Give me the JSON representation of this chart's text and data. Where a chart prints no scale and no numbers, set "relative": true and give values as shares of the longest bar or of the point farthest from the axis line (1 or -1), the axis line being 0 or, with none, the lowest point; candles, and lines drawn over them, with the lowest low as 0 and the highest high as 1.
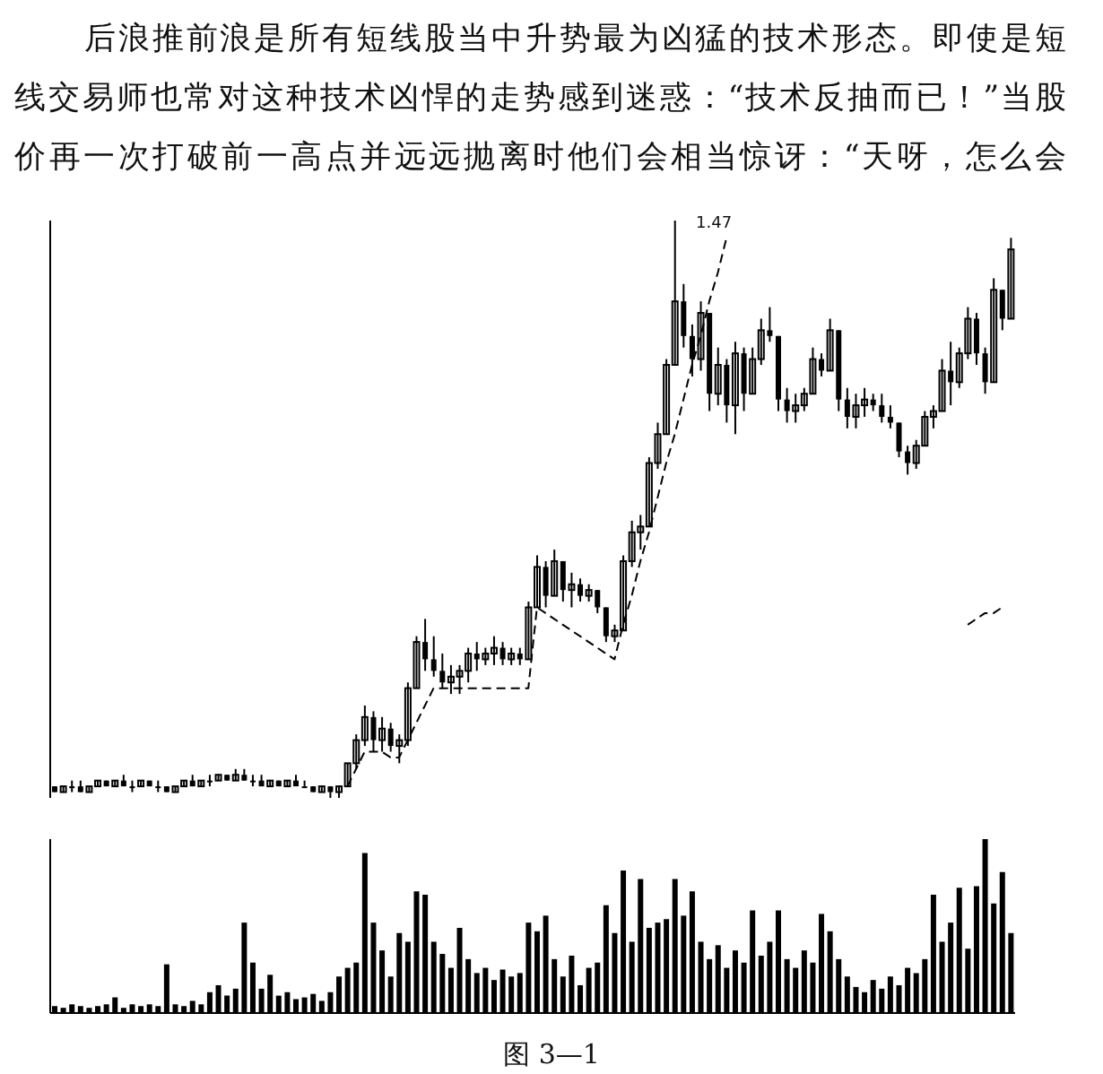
{
  "chart_data": [
    {
      "type": "candlestick",
      "relative": true,
      "color": "#000000",
      "annotations": [
        "后浪推前浪是所有短线股当中升势最为凶猛的技术形态。即使是短",
        "线交易师也常对这种技术凶悍的走势感到迷惑：“技术反抽而已！”当股",
        "价再一次打破前一高点并远远抛离时他们会相当惊讶：“天呀，怎么会",
        "1.47"
      ],
      "categories": [
        null,
        null,
        null,
        null,
        null,
        null,
        null,
        null,
        null,
        null,
        null,
        null,
        null,
        null,
        null,
        null,
        null,
        null,
        null,
        null,
        null,
        null,
        null,
        null,
        null,
        null,
        null,
        null,
        null,
        null,
        null,
        null,
        null,
        null,
        null,
        null,
        null,
        null,
        null,
        null,
        null,
        null,
        null,
        null,
        null,
        null,
        null,
        null,
        null,
        null,
        null,
        null,
        null,
        null,
        null,
        null,
        null,
        null,
        null,
        null,
        null,
        null,
        null,
        null,
        null,
        null,
        null,
        null,
        null,
        null,
        null,
        null,
        null,
        null,
        null,
        null,
        null,
        null,
        null,
        null,
        null,
        null,
        null,
        null,
        null,
        null,
        null,
        null,
        null,
        null,
        null,
        null,
        null,
        null,
        null,
        null,
        null,
        null,
        null,
        null,
        null,
        null,
        null,
        null,
        null,
        null,
        null,
        null,
        null,
        null,
        null,
        null
      ],
      "ohlc": [
        [
          0.02,
          0.02,
          0.01,
          0.01
        ],
        [
          0.01,
          0.02,
          0.01,
          0.02
        ],
        [
          0.02,
          0.03,
          0.01,
          0.02
        ],
        [
          0.02,
          0.03,
          0.01,
          0.01
        ],
        [
          0.01,
          0.02,
          0.01,
          0.02
        ],
        [
          0.02,
          0.03,
          0.02,
          0.03
        ],
        [
          0.03,
          0.03,
          0.02,
          0.02
        ],
        [
          0.02,
          0.03,
          0.02,
          0.03
        ],
        [
          0.03,
          0.04,
          0.02,
          0.02
        ],
        [
          0.02,
          0.03,
          0.01,
          0.02
        ],
        [
          0.02,
          0.03,
          0.02,
          0.03
        ],
        [
          0.03,
          0.03,
          0.02,
          0.02
        ],
        [
          0.02,
          0.03,
          0.01,
          0.02
        ],
        [
          0.02,
          0.02,
          0.01,
          0.01
        ],
        [
          0.01,
          0.02,
          0.01,
          0.02
        ],
        [
          0.02,
          0.03,
          0.02,
          0.03
        ],
        [
          0.03,
          0.04,
          0.02,
          0.02
        ],
        [
          0.02,
          0.03,
          0.02,
          0.03
        ],
        [
          0.03,
          0.04,
          0.02,
          0.03
        ],
        [
          0.03,
          0.04,
          0.03,
          0.04
        ],
        [
          0.04,
          0.04,
          0.03,
          0.03
        ],
        [
          0.03,
          0.05,
          0.03,
          0.04
        ],
        [
          0.04,
          0.05,
          0.03,
          0.03
        ],
        [
          0.03,
          0.04,
          0.02,
          0.03
        ],
        [
          0.03,
          0.04,
          0.02,
          0.02
        ],
        [
          0.02,
          0.03,
          0.02,
          0.03
        ],
        [
          0.03,
          0.03,
          0.02,
          0.02
        ],
        [
          0.02,
          0.03,
          0.02,
          0.03
        ],
        [
          0.03,
          0.04,
          0.02,
          0.02
        ],
        [
          0.02,
          0.03,
          0.02,
          0.02
        ],
        [
          0.02,
          0.02,
          0.01,
          0.01
        ],
        [
          0.01,
          0.02,
          0.01,
          0.02
        ],
        [
          0.02,
          0.02,
          0,
          0.01
        ],
        [
          0.01,
          0.02,
          0,
          0.02
        ],
        [
          0.02,
          0.06,
          0.02,
          0.06
        ],
        [
          0.06,
          0.11,
          0.05,
          0.1
        ],
        [
          0.1,
          0.16,
          0.09,
          0.14
        ],
        [
          0.14,
          0.15,
          0.08,
          0.1
        ],
        [
          0.1,
          0.14,
          0.08,
          0.12
        ],
        [
          0.12,
          0.13,
          0.08,
          0.09
        ],
        [
          0.09,
          0.11,
          0.06,
          0.1
        ],
        [
          0.1,
          0.2,
          0.09,
          0.19
        ],
        [
          0.19,
          0.28,
          0.19,
          0.27
        ],
        [
          0.27,
          0.31,
          0.22,
          0.24
        ],
        [
          0.24,
          0.28,
          0.21,
          0.22
        ],
        [
          0.22,
          0.25,
          0.19,
          0.2
        ],
        [
          0.2,
          0.23,
          0.18,
          0.21
        ],
        [
          0.21,
          0.23,
          0.18,
          0.22
        ],
        [
          0.22,
          0.26,
          0.2,
          0.25
        ],
        [
          0.25,
          0.27,
          0.22,
          0.24
        ],
        [
          0.24,
          0.26,
          0.23,
          0.25
        ],
        [
          0.25,
          0.28,
          0.23,
          0.26
        ],
        [
          0.26,
          0.27,
          0.23,
          0.24
        ],
        [
          0.24,
          0.26,
          0.23,
          0.25
        ],
        [
          0.25,
          0.26,
          0.23,
          0.24
        ],
        [
          0.24,
          0.34,
          0.24,
          0.33
        ],
        [
          0.33,
          0.42,
          0.33,
          0.4
        ],
        [
          0.4,
          0.41,
          0.33,
          0.35
        ],
        [
          0.35,
          0.43,
          0.35,
          0.41
        ],
        [
          0.41,
          0.41,
          0.34,
          0.36
        ],
        [
          0.36,
          0.39,
          0.33,
          0.37
        ],
        [
          0.37,
          0.38,
          0.34,
          0.35
        ],
        [
          0.35,
          0.37,
          0.34,
          0.36
        ],
        [
          0.36,
          0.36,
          0.32,
          0.33
        ],
        [
          0.33,
          0.33,
          0.27,
          0.28
        ],
        [
          0.28,
          0.3,
          0.27,
          0.29
        ],
        [
          0.29,
          0.42,
          0.29,
          0.41
        ],
        [
          0.41,
          0.48,
          0.4,
          0.46
        ],
        [
          0.46,
          0.49,
          0.43,
          0.47
        ],
        [
          0.47,
          0.59,
          0.47,
          0.58
        ],
        [
          0.58,
          0.65,
          0.57,
          0.63
        ],
        [
          0.63,
          0.76,
          0.63,
          0.75
        ],
        [
          0.75,
          1,
          0.75,
          0.86
        ],
        [
          0.86,
          0.89,
          0.78,
          0.8
        ],
        [
          0.8,
          0.82,
          0.73,
          0.76
        ],
        [
          0.76,
          0.86,
          0.74,
          0.84
        ],
        [
          0.84,
          0.84,
          0.67,
          0.7
        ],
        [
          0.7,
          0.78,
          0.68,
          0.75
        ],
        [
          0.75,
          0.76,
          0.65,
          0.68
        ],
        [
          0.68,
          0.79,
          0.63,
          0.77
        ],
        [
          0.77,
          0.78,
          0.67,
          0.7
        ],
        [
          0.7,
          0.78,
          0.7,
          0.76
        ],
        [
          0.76,
          0.83,
          0.75,
          0.81
        ],
        [
          0.81,
          0.85,
          0.79,
          0.8
        ],
        [
          0.8,
          0.8,
          0.67,
          0.69
        ],
        [
          0.69,
          0.71,
          0.65,
          0.67
        ],
        [
          0.67,
          0.7,
          0.65,
          0.68
        ],
        [
          0.68,
          0.71,
          0.67,
          0.7
        ],
        [
          0.7,
          0.78,
          0.7,
          0.76
        ],
        [
          0.76,
          0.77,
          0.73,
          0.74
        ],
        [
          0.74,
          0.83,
          0.74,
          0.81
        ],
        [
          0.81,
          0.81,
          0.67,
          0.69
        ],
        [
          0.69,
          0.71,
          0.64,
          0.66
        ],
        [
          0.66,
          0.7,
          0.64,
          0.68
        ],
        [
          0.68,
          0.71,
          0.66,
          0.69
        ],
        [
          0.69,
          0.7,
          0.67,
          0.68
        ],
        [
          0.68,
          0.7,
          0.65,
          0.66
        ],
        [
          0.66,
          0.68,
          0.64,
          0.65
        ],
        [
          0.65,
          0.65,
          0.59,
          0.6
        ],
        [
          0.6,
          0.61,
          0.56,
          0.58
        ],
        [
          0.58,
          0.62,
          0.57,
          0.61
        ],
        [
          0.61,
          0.67,
          0.61,
          0.66
        ],
        [
          0.66,
          0.68,
          0.64,
          0.67
        ],
        [
          0.67,
          0.76,
          0.67,
          0.74
        ],
        [
          0.74,
          0.79,
          0.68,
          0.72
        ],
        [
          0.72,
          0.78,
          0.71,
          0.77
        ],
        [
          0.77,
          0.85,
          0.76,
          0.83
        ],
        [
          0.83,
          0.84,
          0.75,
          0.77
        ],
        [
          0.77,
          0.78,
          0.7,
          0.72
        ],
        [
          0.72,
          0.9,
          0.72,
          0.88
        ],
        [
          0.88,
          0.88,
          0.81,
          0.83
        ],
        [
          0.83,
          0.97,
          0.83,
          0.95
        ]
      ],
      "series": [
        {
          "type": "line",
          "color": "#000000",
          "line_style": "dashed",
          "values": [
            null,
            null,
            null,
            null,
            null,
            null,
            null,
            null,
            null,
            null,
            null,
            null,
            null,
            null,
            null,
            null,
            null,
            null,
            null,
            null,
            null,
            null,
            null,
            null,
            null,
            null,
            null,
            null,
            null,
            null,
            null,
            null,
            null,
            null,
            0.02,
            0.05,
            0.08,
            0.08,
            0.08,
            0.07,
            0.07,
            0.1,
            0.13,
            0.16,
            0.19,
            0.19,
            0.19,
            0.19,
            0.19,
            0.19,
            0.19,
            0.19,
            0.19,
            0.19,
            0.19,
            0.19,
            0.33,
            0.32,
            0.31,
            0.3,
            0.29,
            0.28,
            0.27,
            0.26,
            0.25,
            0.24,
            0.3,
            0.35,
            0.41,
            0.46,
            0.52,
            0.58,
            0.63,
            0.69,
            0.75,
            0.8,
            0.86,
            0.91,
            0.97,
            null,
            null,
            null,
            null,
            null,
            null,
            null,
            null,
            null,
            null,
            null,
            null,
            null,
            null,
            null,
            null,
            null,
            null,
            null,
            null,
            null,
            null,
            null,
            null,
            null,
            null,
            null,
            null,
            null,
            null,
            null,
            null,
            null
          ]
        },
        {
          "type": "line",
          "color": "#000000",
          "line_style": "dashed",
          "values": [
            null,
            null,
            null,
            null,
            null,
            null,
            null,
            null,
            null,
            null,
            null,
            null,
            null,
            null,
            null,
            null,
            null,
            null,
            null,
            null,
            null,
            null,
            null,
            null,
            null,
            null,
            null,
            null,
            null,
            null,
            null,
            null,
            null,
            null,
            null,
            null,
            null,
            null,
            null,
            null,
            null,
            null,
            null,
            null,
            null,
            null,
            null,
            null,
            null,
            null,
            null,
            null,
            null,
            null,
            null,
            null,
            null,
            null,
            null,
            null,
            null,
            null,
            null,
            null,
            null,
            null,
            null,
            null,
            null,
            null,
            null,
            null,
            null,
            null,
            null,
            null,
            null,
            null,
            null,
            null,
            null,
            null,
            null,
            null,
            null,
            null,
            null,
            null,
            null,
            null,
            null,
            null,
            null,
            null,
            null,
            null,
            null,
            null,
            null,
            null,
            null,
            null,
            null,
            null,
            null,
            null,
            0.3,
            0.31,
            0.32,
            0.32,
            0.33,
            null
          ]
        }
      ]
    },
    {
      "type": "bar",
      "relative": true,
      "color": "#000000",
      "annotations": [
        "图 3—1"
      ],
      "categories": [
        null,
        null,
        null,
        null,
        null,
        null,
        null,
        null,
        null,
        null,
        null,
        null,
        null,
        null,
        null,
        null,
        null,
        null,
        null,
        null,
        null,
        null,
        null,
        null,
        null,
        null,
        null,
        null,
        null,
        null,
        null,
        null,
        null,
        null,
        null,
        null,
        null,
        null,
        null,
        null,
        null,
        null,
        null,
        null,
        null,
        null,
        null,
        null,
        null,
        null,
        null,
        null,
        null,
        null,
        null,
        null,
        null,
        null,
        null,
        null,
        null,
        null,
        null,
        null,
        null,
        null,
        null,
        null,
        null,
        null,
        null,
        null,
        null,
        null,
        null,
        null,
        null,
        null,
        null,
        null,
        null,
        null,
        null,
        null,
        null,
        null,
        null,
        null,
        null,
        null,
        null,
        null,
        null,
        null,
        null,
        null,
        null,
        null,
        null,
        null,
        null,
        null,
        null,
        null,
        null,
        null,
        null,
        null,
        null,
        null,
        null,
        null
      ],
      "values": [
        0.04,
        0.03,
        0.05,
        0.04,
        0.03,
        0.04,
        0.05,
        0.09,
        0.03,
        0.05,
        0.04,
        0.05,
        0.04,
        0.28,
        0.05,
        0.04,
        0.07,
        0.05,
        0.12,
        0.16,
        0.1,
        0.14,
        0.52,
        0.29,
        0.14,
        0.22,
        0.1,
        0.12,
        0.08,
        0.09,
        0.11,
        0.07,
        0.12,
        0.21,
        0.26,
        0.29,
        0.92,
        0.52,
        0.36,
        0.21,
        0.46,
        0.41,
        0.7,
        0.68,
        0.41,
        0.34,
        0.26,
        0.49,
        0.31,
        0.23,
        0.26,
        0.19,
        0.25,
        0.21,
        0.23,
        0.52,
        0.47,
        0.56,
        0.31,
        0.21,
        0.33,
        0.16,
        0.26,
        0.29,
        0.62,
        0.46,
        0.82,
        0.41,
        0.77,
        0.49,
        0.52,
        0.54,
        0.77,
        0.56,
        0.7,
        0.41,
        0.31,
        0.39,
        0.26,
        0.36,
        0.29,
        0.59,
        0.33,
        0.41,
        0.59,
        0.31,
        0.26,
        0.36,
        0.29,
        0.57,
        0.47,
        0.31,
        0.21,
        0.15,
        0.12,
        0.19,
        0.14,
        0.21,
        0.16,
        0.26,
        0.23,
        0.31,
        0.68,
        0.41,
        0.52,
        0.72,
        0.37,
        0.73,
        1,
        0.63,
        0.81,
        0.46
      ]
    }
  ]
}
